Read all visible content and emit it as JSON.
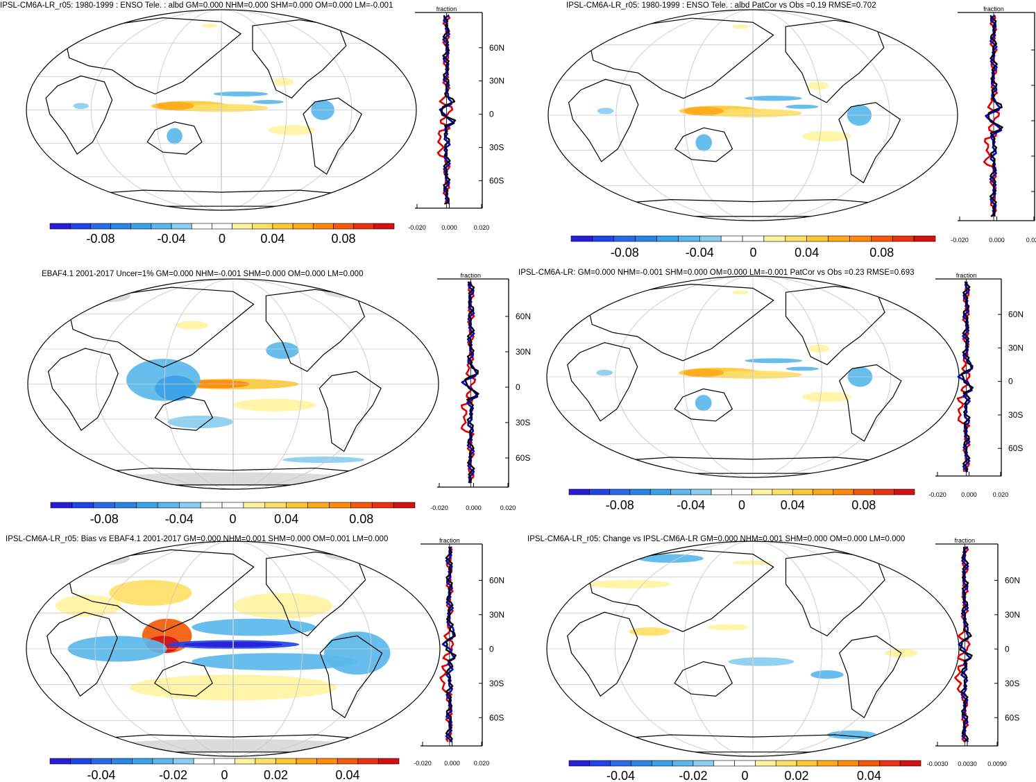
{
  "colors": {
    "ocean": "#ffffff",
    "coast": "#000000",
    "grid": "#cccccc",
    "missing": "#d8d8d8",
    "line_model": "#e00000",
    "line_obs": "#0000cc",
    "line_mean": "#000000",
    "palette": [
      "#2a1dd8",
      "#1f45e8",
      "#2a6ae8",
      "#2a86e4",
      "#3aa2e8",
      "#5ab8ec",
      "#8acdf0",
      "#ffffff",
      "#ffffff",
      "#fff3a0",
      "#ffe066",
      "#ffc833",
      "#ffa91a",
      "#ff8a0a",
      "#f45a0a",
      "#e83210",
      "#d41010"
    ]
  },
  "panels": [
    {
      "title": "IPSL-CM6A-LR_r05: 1980-1999 : ENSO Tele. : albd GM=0.000 NHM=0.000 SHM=0.000 OM=0.000 LM=-0.001",
      "profile_label": "fraction",
      "profile_ticks": [
        "-0.020",
        "0.000",
        "0.020"
      ],
      "lat_labels": [
        "60N",
        "30N",
        "0",
        "30S",
        "60S"
      ],
      "colorbar_labels": [
        "-0.08",
        "-0.04",
        "0",
        "0.04",
        "0.08"
      ],
      "map_features": [
        "enso-warm-tongue",
        "nw-pacific-blue",
        "cold-coastal",
        "subtrop-yellow"
      ]
    },
    {
      "title": "IPSL-CM6A-LR_r05: 1980-1999 : ENSO Tele. : albd PatCor vs Obs =0.19 RMSE=0.702",
      "profile_label": "fraction",
      "profile_ticks": [
        "-0.020",
        "0.000",
        "0.020"
      ],
      "lat_labels": [],
      "colorbar_labels": [
        "-0.08",
        "-0.04",
        "0",
        "0.04",
        "0.08"
      ],
      "map_features": [
        "enso-warm-tongue",
        "nw-pacific-blue",
        "cold-coastal",
        "subtrop-yellow"
      ]
    },
    {
      "title": "EBAF4.1 2001-2017 Uncer=1% GM=0.000 NHM=-0.001 SHM=0.000 OM=0.000 LM=0.000",
      "profile_label": "fraction",
      "profile_ticks": [
        "-0.020",
        "0.000",
        "0.020"
      ],
      "lat_labels": [
        "60N",
        "30N",
        "0",
        "30S",
        "60S"
      ],
      "colorbar_labels": [
        "-0.08",
        "-0.04",
        "0",
        "0.04",
        "0.08"
      ],
      "map_features": [
        "obs-warm-tongue",
        "maritime-blue",
        "antarctic-missing",
        "arctic-missing"
      ]
    },
    {
      "title": "IPSL-CM6A-LR: GM=0.000 NHM=-0.001 SHM=0.000 OM=0.000 LM=-0.001 PatCor vs Obs =0.23 RMSE=0.693",
      "profile_label": "fraction",
      "profile_ticks": [
        "-0.020",
        "0.000",
        "0.020"
      ],
      "lat_labels": [
        "60N",
        "30N",
        "0",
        "30S",
        "60S"
      ],
      "colorbar_labels": [
        "-0.08",
        "-0.04",
        "0",
        "0.04",
        "0.08"
      ],
      "map_features": [
        "enso-warm-tongue",
        "nw-pacific-blue",
        "cold-coastal",
        "subtrop-yellow"
      ]
    },
    {
      "title": "IPSL-CM6A-LR_r05: Bias vs EBAF4.1 2001-2017 GM=0.000 NHM=0.001 SHM=0.000 OM=0.001 LM=0.000",
      "profile_label": "fraction",
      "profile_ticks": [
        "-0.020",
        "0.000",
        "0.020"
      ],
      "lat_labels": [
        "60N",
        "30N",
        "0",
        "30S",
        "60S"
      ],
      "colorbar_labels": [
        "-0.04",
        "-0.02",
        "0",
        "0.02",
        "0.04"
      ],
      "map_features": [
        "bias-strong",
        "antarctic-missing",
        "arctic-missing"
      ]
    },
    {
      "title": "IPSL-CM6A-LR_r05: Change vs IPSL-CM6A-LR GM=0.000 NHM=0.001 SHM=0.000 OM=0.000 LM=0.000",
      "profile_label": "fraction",
      "profile_ticks": [
        "-0.0030",
        "0.0030",
        "0.0090"
      ],
      "lat_labels": [
        "60N",
        "30N",
        "0",
        "30S",
        "60S"
      ],
      "colorbar_labels": [
        "-0.04",
        "-0.02",
        "0",
        "0.02",
        "0.04"
      ],
      "map_features": [
        "change-mixed"
      ]
    }
  ],
  "chart_data": [
    {
      "type": "heatmap",
      "title": "IPSL-CM6A-LR_r05: 1980-1999 : ENSO Tele. : albd GM=0.000 NHM=0.000 SHM=0.000 OM=0.000 LM=-0.001",
      "colorbar_ticks": [
        -0.08,
        -0.04,
        0,
        0.04,
        0.08
      ],
      "profile_xticks": [
        -0.02,
        0,
        0.02
      ],
      "lat_ticks": [
        "60N",
        "30N",
        "0",
        "30S",
        "60S"
      ]
    },
    {
      "type": "heatmap",
      "title": "IPSL-CM6A-LR_r05: 1980-1999 : ENSO Tele. : albd PatCor vs Obs =0.19 RMSE=0.702",
      "colorbar_ticks": [
        -0.08,
        -0.04,
        0,
        0.04,
        0.08
      ],
      "profile_xticks": [
        -0.02,
        0,
        0.02
      ]
    },
    {
      "type": "heatmap",
      "title": "EBAF4.1 2001-2017 Uncer=1% GM=0.000 NHM=-0.001 SHM=0.000 OM=0.000 LM=0.000",
      "colorbar_ticks": [
        -0.08,
        -0.04,
        0,
        0.04,
        0.08
      ],
      "profile_xticks": [
        -0.02,
        0,
        0.02
      ],
      "lat_ticks": [
        "60N",
        "30N",
        "0",
        "30S",
        "60S"
      ]
    },
    {
      "type": "heatmap",
      "title": "IPSL-CM6A-LR: GM=0.000 NHM=-0.001 SHM=0.000 OM=0.000 LM=-0.001 PatCor vs Obs =0.23 RMSE=0.693",
      "colorbar_ticks": [
        -0.08,
        -0.04,
        0,
        0.04,
        0.08
      ],
      "profile_xticks": [
        -0.02,
        0,
        0.02
      ],
      "lat_ticks": [
        "60N",
        "30N",
        "0",
        "30S",
        "60S"
      ]
    },
    {
      "type": "heatmap",
      "title": "IPSL-CM6A-LR_r05: Bias vs EBAF4.1 2001-2017 GM=0.000 NHM=0.001 SHM=0.000 OM=0.001 LM=0.000",
      "colorbar_ticks": [
        -0.04,
        -0.02,
        0,
        0.02,
        0.04
      ],
      "profile_xticks": [
        -0.02,
        0,
        0.02
      ],
      "lat_ticks": [
        "60N",
        "30N",
        "0",
        "30S",
        "60S"
      ]
    },
    {
      "type": "heatmap",
      "title": "IPSL-CM6A-LR_r05: Change vs IPSL-CM6A-LR GM=0.000 NHM=0.001 SHM=0.000 OM=0.000 LM=0.000",
      "colorbar_ticks": [
        -0.04,
        -0.02,
        0,
        0.02,
        0.04
      ],
      "profile_xticks": [
        -0.003,
        0.003,
        0.009
      ],
      "lat_ticks": [
        "60N",
        "30N",
        "0",
        "30S",
        "60S"
      ]
    }
  ]
}
